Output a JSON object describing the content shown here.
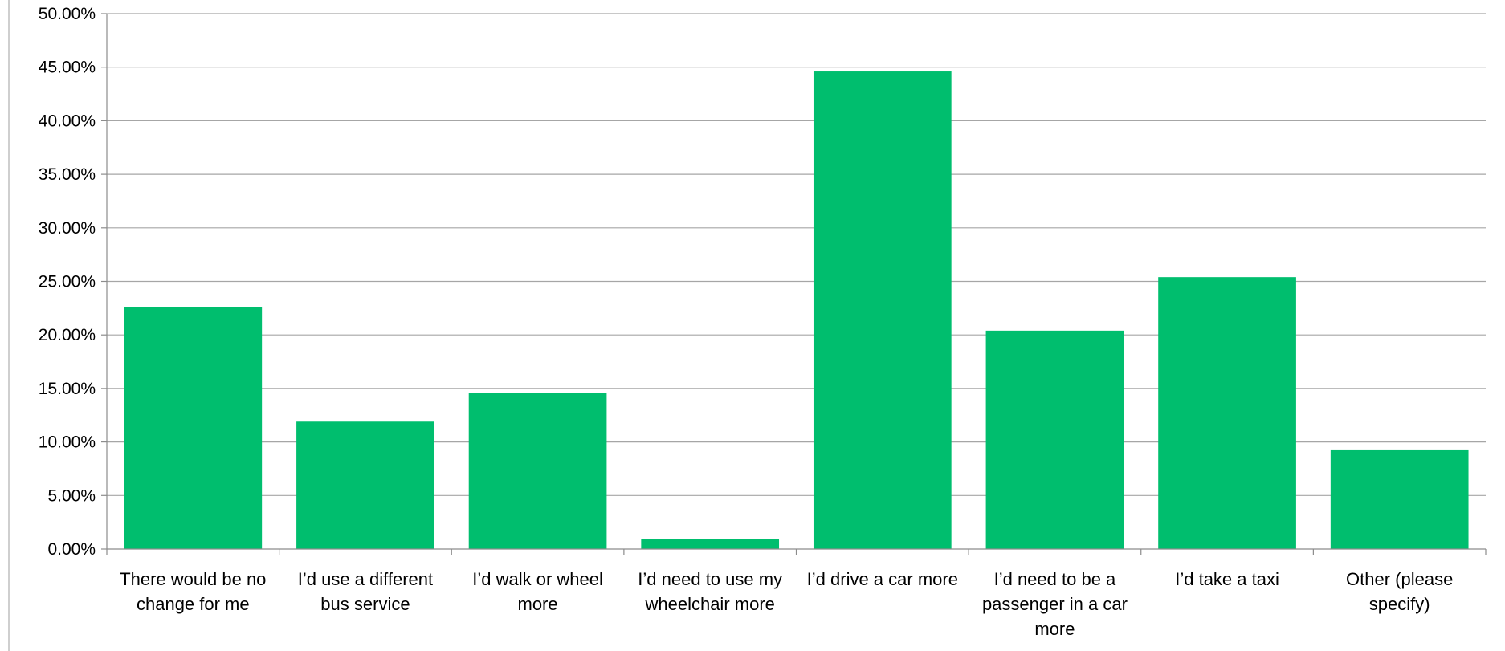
{
  "chart_data": {
    "type": "bar",
    "title": "",
    "xlabel": "",
    "ylabel": "",
    "ylim": [
      0,
      50
    ],
    "y_tick_step": 5,
    "y_tick_labels": [
      "0.00%",
      "5.00%",
      "10.00%",
      "15.00%",
      "20.00%",
      "25.00%",
      "30.00%",
      "35.00%",
      "40.00%",
      "45.00%",
      "50.00%"
    ],
    "grid": true,
    "legend": "none",
    "categories": [
      [
        "There would be no",
        "change for me"
      ],
      [
        "I’d use a different",
        "bus service"
      ],
      [
        "I’d walk or wheel",
        "more"
      ],
      [
        "I’d need to use my",
        "wheelchair more"
      ],
      [
        "I’d drive a car more"
      ],
      [
        "I’d need to be a",
        "passenger in a car",
        "more"
      ],
      [
        "I’d take a taxi"
      ],
      [
        "Other (please",
        "specify)"
      ]
    ],
    "values": [
      22.6,
      11.9,
      14.6,
      0.9,
      44.6,
      20.4,
      25.4,
      9.3
    ],
    "colors": {
      "bar": "#00BE6E",
      "grid": "#A6A6A6",
      "axis": "#8C8C8C",
      "border": "#BFBFBF"
    }
  }
}
